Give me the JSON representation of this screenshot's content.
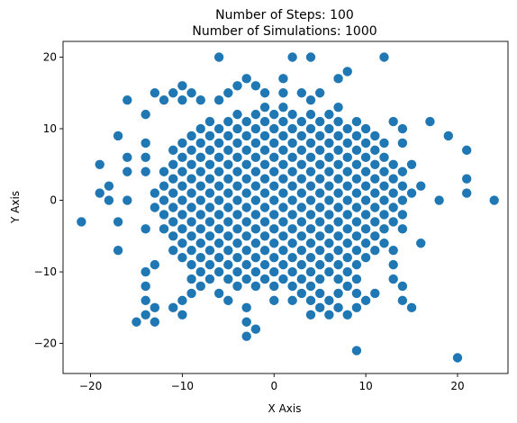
{
  "chart_data": {
    "type": "scatter",
    "title": "Number of Steps: 100",
    "subtitle": "Number of Simulations: 1000",
    "xlabel": "X Axis",
    "ylabel": "Y Axis",
    "xlim": [
      -23,
      25.5
    ],
    "ylim": [
      -24.2,
      22.2
    ],
    "xticks": [
      -20,
      -10,
      0,
      10,
      20
    ],
    "yticks": [
      -20,
      -10,
      0,
      10,
      20
    ],
    "grid": false,
    "marker_color": "#1f77b4",
    "points": [
      [
        -21,
        -3
      ],
      [
        24,
        0
      ],
      [
        20,
        -22
      ],
      [
        9,
        -21
      ],
      [
        -6,
        20
      ],
      [
        2,
        20
      ],
      [
        4,
        20
      ],
      [
        12,
        20
      ],
      [
        8,
        18
      ],
      [
        7,
        17
      ],
      [
        1,
        17
      ],
      [
        -19,
        5
      ],
      [
        -19,
        1
      ],
      [
        -18,
        2
      ],
      [
        -18,
        0
      ],
      [
        -17,
        9
      ],
      [
        -17,
        -3
      ],
      [
        -17,
        -7
      ],
      [
        -16,
        14
      ],
      [
        -16,
        6
      ],
      [
        -16,
        4
      ],
      [
        -16,
        0
      ],
      [
        -15,
        -17
      ],
      [
        -14,
        12
      ],
      [
        -14,
        8
      ],
      [
        -14,
        6
      ],
      [
        -14,
        4
      ],
      [
        -14,
        -4
      ],
      [
        -14,
        -10
      ],
      [
        -14,
        -12
      ],
      [
        -14,
        -14
      ],
      [
        -14,
        -16
      ],
      [
        -13,
        15
      ],
      [
        -13,
        -1
      ],
      [
        -13,
        -9
      ],
      [
        -13,
        -15
      ],
      [
        -13,
        -17
      ],
      [
        17,
        11
      ],
      [
        19,
        9
      ],
      [
        21,
        7
      ],
      [
        21,
        3
      ],
      [
        21,
        1
      ],
      [
        18,
        0
      ],
      [
        16,
        2
      ],
      [
        16,
        -6
      ],
      [
        15,
        5
      ],
      [
        15,
        1
      ],
      [
        15,
        -15
      ],
      [
        14,
        -14
      ],
      [
        14,
        -12
      ],
      [
        14,
        -4
      ],
      [
        10,
        10
      ],
      [
        10,
        4
      ],
      [
        10,
        -8
      ],
      [
        10,
        -14
      ],
      [
        11,
        -13
      ],
      [
        11,
        -5
      ],
      [
        12,
        -4
      ],
      [
        12,
        -6
      ],
      [
        13,
        -9
      ],
      [
        13,
        -11
      ],
      [
        13,
        -7
      ],
      [
        14,
        -2
      ],
      [
        14,
        0
      ],
      [
        14,
        2
      ],
      [
        14,
        4
      ],
      [
        5,
        -15
      ],
      [
        6,
        -16
      ],
      [
        6,
        -14
      ],
      [
        7,
        -13
      ],
      [
        7,
        -15
      ],
      [
        8,
        -16
      ],
      [
        8,
        -12
      ],
      [
        9,
        -13
      ],
      [
        9,
        -11
      ],
      [
        9,
        -15
      ],
      [
        -10,
        -16
      ],
      [
        -10,
        -14
      ],
      [
        -11,
        -15
      ],
      [
        -9,
        -13
      ],
      [
        -9,
        -11
      ],
      [
        -8,
        -12
      ],
      [
        -7,
        -11
      ],
      [
        -6,
        -13
      ],
      [
        -5,
        -14
      ],
      [
        -3,
        -15
      ],
      [
        -3,
        -17
      ],
      [
        -3,
        -19
      ],
      [
        -2,
        -18
      ],
      [
        -4,
        -12
      ],
      [
        -2,
        -12
      ],
      [
        0,
        -14
      ],
      [
        2,
        -14
      ],
      [
        4,
        -16
      ],
      [
        4,
        -14
      ],
      [
        2,
        -12
      ],
      [
        3,
        -11
      ],
      [
        3,
        -13
      ],
      [
        5,
        -13
      ],
      [
        6,
        -10
      ],
      [
        7,
        -9
      ],
      [
        8,
        -10
      ],
      [
        9,
        -9
      ],
      [
        10,
        -6
      ],
      [
        11,
        -7
      ],
      [
        -12,
        14
      ],
      [
        -11,
        15
      ],
      [
        -10,
        16
      ],
      [
        -10,
        14
      ],
      [
        -9,
        15
      ],
      [
        -8,
        14
      ],
      [
        -6,
        14
      ],
      [
        -5,
        15
      ],
      [
        -4,
        16
      ],
      [
        -3,
        17
      ],
      [
        -2,
        16
      ],
      [
        -1,
        15
      ],
      [
        1,
        15
      ],
      [
        3,
        15
      ],
      [
        4,
        14
      ],
      [
        5,
        15
      ],
      [
        6,
        12
      ],
      [
        7,
        13
      ],
      [
        9,
        11
      ],
      [
        10,
        10
      ],
      [
        11,
        9
      ],
      [
        11,
        7
      ],
      [
        12,
        8
      ],
      [
        12,
        6
      ],
      [
        13,
        11
      ],
      [
        13,
        5
      ],
      [
        14,
        10
      ],
      [
        14,
        8
      ],
      [
        13,
        3
      ],
      [
        13,
        1
      ],
      [
        13,
        -1
      ],
      [
        13,
        -3
      ]
    ],
    "grid_region": {
      "comment": "dense lattice of occupied even-parity lattice sites",
      "x": [
        -13,
        12
      ],
      "y": [
        -12,
        13
      ]
    }
  }
}
